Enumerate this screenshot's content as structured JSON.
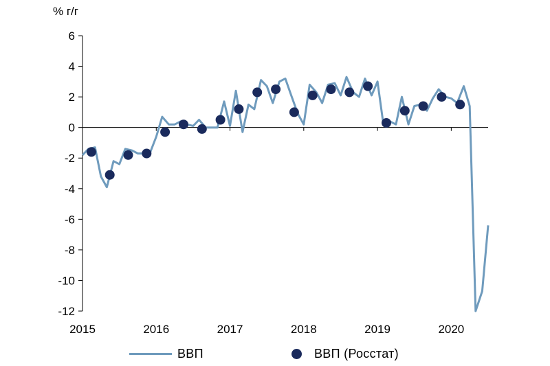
{
  "chart_data": {
    "type": "line",
    "unit_label": "% г/г",
    "title": "",
    "xlabel": "",
    "ylabel": "% г/г",
    "ylim": [
      -12,
      6
    ],
    "yticks": [
      6,
      4,
      2,
      0,
      -2,
      -4,
      -6,
      -8,
      -10,
      -12
    ],
    "ytick_labels": [
      "6",
      "4",
      "2",
      "0",
      "-2",
      "-4",
      "-6",
      "-8",
      "-10",
      "-12"
    ],
    "xlim": [
      2015.0,
      2020.5
    ],
    "xticks": [
      2015,
      2016,
      2017,
      2018,
      2019,
      2020
    ],
    "xtick_labels": [
      "2015",
      "2016",
      "2017",
      "2018",
      "2019",
      "2020"
    ],
    "grid": false,
    "legend_position": "bottom",
    "series": [
      {
        "name": "ВВП",
        "kind": "line",
        "color": "#6f9bbd",
        "points": [
          [
            2015.0,
            -1.8
          ],
          [
            2015.08,
            -1.4
          ],
          [
            2015.17,
            -1.3
          ],
          [
            2015.25,
            -3.2
          ],
          [
            2015.33,
            -3.9
          ],
          [
            2015.42,
            -2.2
          ],
          [
            2015.5,
            -2.4
          ],
          [
            2015.58,
            -1.4
          ],
          [
            2015.67,
            -1.5
          ],
          [
            2015.75,
            -1.7
          ],
          [
            2015.83,
            -1.7
          ],
          [
            2015.92,
            -1.6
          ],
          [
            2016.0,
            -0.6
          ],
          [
            2016.08,
            0.7
          ],
          [
            2016.17,
            0.2
          ],
          [
            2016.25,
            0.2
          ],
          [
            2016.33,
            0.4
          ],
          [
            2016.42,
            0.2
          ],
          [
            2016.5,
            0.1
          ],
          [
            2016.58,
            0.5
          ],
          [
            2016.67,
            0.0
          ],
          [
            2016.75,
            0.0
          ],
          [
            2016.83,
            0.0
          ],
          [
            2016.92,
            1.7
          ],
          [
            2017.0,
            0.1
          ],
          [
            2017.08,
            2.4
          ],
          [
            2017.17,
            -0.3
          ],
          [
            2017.25,
            1.5
          ],
          [
            2017.33,
            1.2
          ],
          [
            2017.42,
            3.1
          ],
          [
            2017.5,
            2.7
          ],
          [
            2017.58,
            1.6
          ],
          [
            2017.67,
            3.0
          ],
          [
            2017.75,
            3.2
          ],
          [
            2017.83,
            2.1
          ],
          [
            2017.92,
            0.9
          ],
          [
            2018.0,
            0.2
          ],
          [
            2018.08,
            2.8
          ],
          [
            2018.17,
            2.3
          ],
          [
            2018.25,
            1.6
          ],
          [
            2018.33,
            2.8
          ],
          [
            2018.42,
            2.9
          ],
          [
            2018.5,
            2.1
          ],
          [
            2018.58,
            3.3
          ],
          [
            2018.67,
            2.3
          ],
          [
            2018.75,
            2.0
          ],
          [
            2018.83,
            3.2
          ],
          [
            2018.92,
            2.1
          ],
          [
            2019.0,
            3.0
          ],
          [
            2019.08,
            0.2
          ],
          [
            2019.17,
            0.4
          ],
          [
            2019.25,
            0.2
          ],
          [
            2019.33,
            2.0
          ],
          [
            2019.42,
            0.2
          ],
          [
            2019.5,
            1.4
          ],
          [
            2019.58,
            1.5
          ],
          [
            2019.67,
            1.1
          ],
          [
            2019.75,
            1.9
          ],
          [
            2019.83,
            2.5
          ],
          [
            2019.92,
            2.0
          ],
          [
            2020.0,
            1.9
          ],
          [
            2020.08,
            1.6
          ],
          [
            2020.17,
            2.7
          ],
          [
            2020.25,
            1.4
          ],
          [
            2020.33,
            -12.0
          ],
          [
            2020.42,
            -10.7
          ],
          [
            2020.5,
            -6.4
          ]
        ]
      },
      {
        "name": "ВВП (Росстат)",
        "kind": "scatter",
        "color": "#1a2a5c",
        "points": [
          [
            2015.12,
            -1.6
          ],
          [
            2015.37,
            -3.1
          ],
          [
            2015.62,
            -1.8
          ],
          [
            2015.87,
            -1.7
          ],
          [
            2016.12,
            -0.3
          ],
          [
            2016.37,
            0.2
          ],
          [
            2016.62,
            -0.1
          ],
          [
            2016.87,
            0.5
          ],
          [
            2017.12,
            1.2
          ],
          [
            2017.37,
            2.3
          ],
          [
            2017.62,
            2.5
          ],
          [
            2017.87,
            1.0
          ],
          [
            2018.12,
            2.1
          ],
          [
            2018.37,
            2.5
          ],
          [
            2018.62,
            2.3
          ],
          [
            2018.87,
            2.7
          ],
          [
            2019.12,
            0.3
          ],
          [
            2019.37,
            1.1
          ],
          [
            2019.62,
            1.4
          ],
          [
            2019.87,
            2.0
          ],
          [
            2020.12,
            1.5
          ]
        ]
      }
    ]
  },
  "legend": {
    "items": [
      {
        "label": "ВВП",
        "marker": "line"
      },
      {
        "label": "ВВП (Росстат)",
        "marker": "dot"
      }
    ]
  }
}
